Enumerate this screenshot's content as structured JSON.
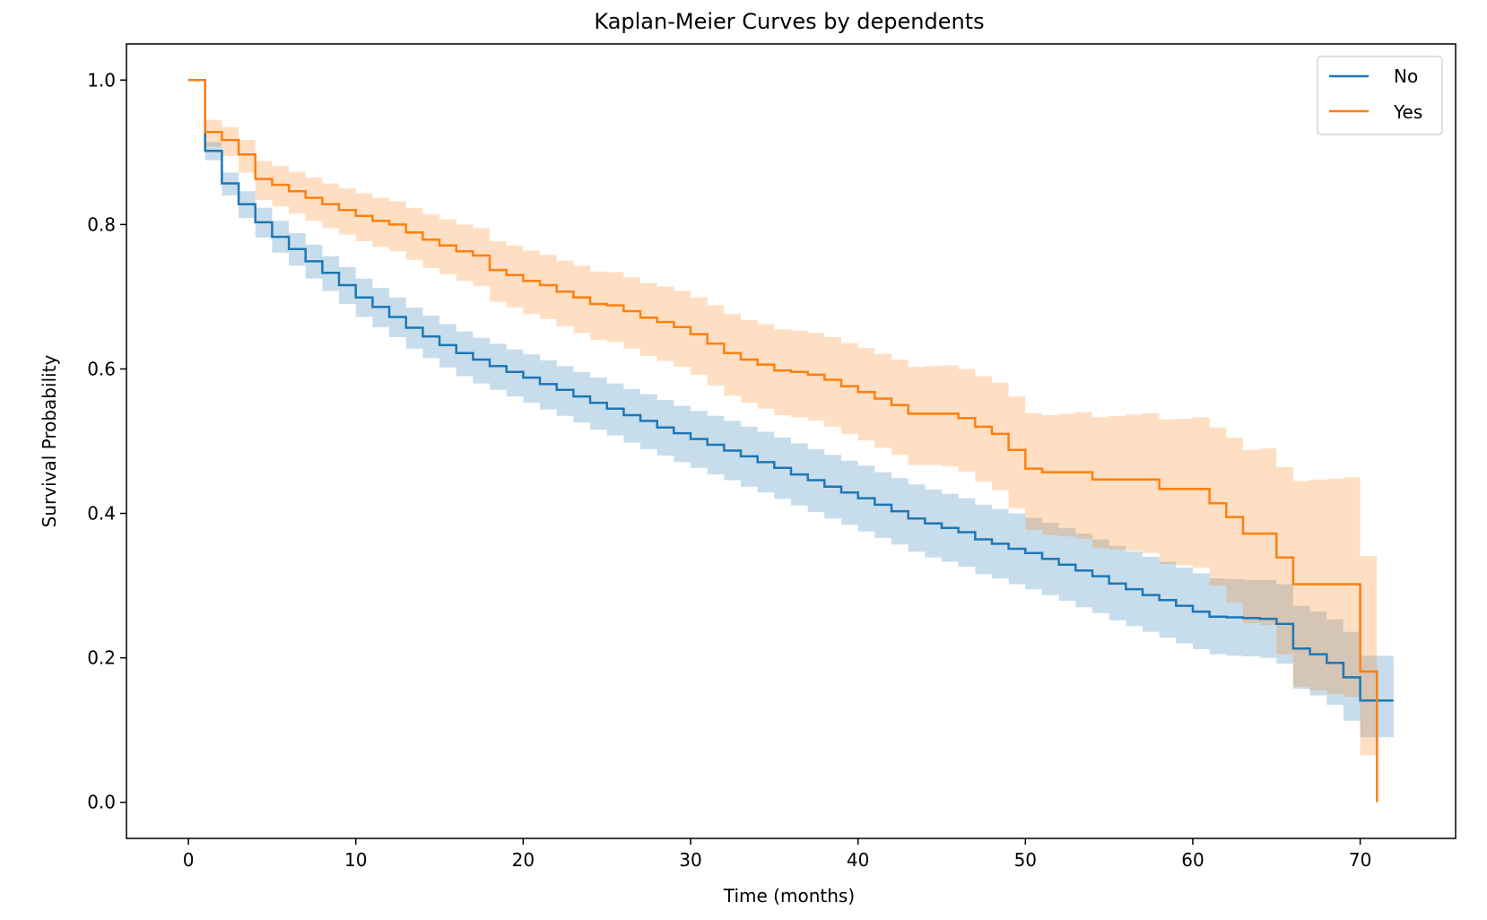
{
  "chart_data": {
    "type": "line",
    "title": "Kaplan-Meier Curves by dependents",
    "xlabel": "Time (months)",
    "ylabel": "Survival Probability",
    "xlim": [
      -3.7,
      75.7
    ],
    "ylim": [
      -0.05,
      1.05
    ],
    "xticks": [
      0,
      10,
      20,
      30,
      40,
      50,
      60,
      70
    ],
    "yticks": [
      0.0,
      0.2,
      0.4,
      0.6,
      0.8,
      1.0
    ],
    "xtick_labels": [
      "0",
      "10",
      "20",
      "30",
      "40",
      "50",
      "60",
      "70"
    ],
    "ytick_labels": [
      "0.0",
      "0.2",
      "0.4",
      "0.6",
      "0.8",
      "1.0"
    ],
    "grid": false,
    "legend_position": "top-right",
    "step": "post",
    "series": [
      {
        "name": "No",
        "color": "#1f77b4",
        "x": [
          0,
          1,
          2,
          3,
          4,
          5,
          6,
          7,
          8,
          9,
          10,
          11,
          12,
          13,
          14,
          15,
          16,
          17,
          18,
          19,
          20,
          21,
          22,
          23,
          24,
          25,
          26,
          27,
          28,
          29,
          30,
          31,
          32,
          33,
          34,
          35,
          36,
          37,
          38,
          39,
          40,
          41,
          42,
          43,
          44,
          45,
          46,
          47,
          48,
          49,
          50,
          51,
          52,
          53,
          54,
          55,
          56,
          57,
          58,
          59,
          60,
          61,
          62,
          63,
          64,
          65,
          66,
          67,
          68,
          69,
          70,
          71,
          72
        ],
        "y": [
          1.0,
          0.902,
          0.857,
          0.828,
          0.803,
          0.783,
          0.766,
          0.749,
          0.733,
          0.716,
          0.699,
          0.686,
          0.672,
          0.657,
          0.645,
          0.633,
          0.622,
          0.613,
          0.604,
          0.596,
          0.588,
          0.579,
          0.571,
          0.562,
          0.553,
          0.545,
          0.536,
          0.528,
          0.519,
          0.511,
          0.503,
          0.495,
          0.487,
          0.479,
          0.471,
          0.463,
          0.454,
          0.446,
          0.437,
          0.429,
          0.421,
          0.412,
          0.403,
          0.393,
          0.386,
          0.38,
          0.374,
          0.364,
          0.358,
          0.351,
          0.345,
          0.337,
          0.329,
          0.321,
          0.313,
          0.303,
          0.295,
          0.287,
          0.28,
          0.272,
          0.264,
          0.257,
          0.256,
          0.255,
          0.254,
          0.247,
          0.213,
          0.205,
          0.193,
          0.173,
          0.141,
          0.141,
          0.141
        ],
        "ci_lower": [
          1.0,
          0.889,
          0.84,
          0.809,
          0.782,
          0.761,
          0.743,
          0.725,
          0.708,
          0.69,
          0.672,
          0.658,
          0.644,
          0.628,
          0.615,
          0.602,
          0.59,
          0.58,
          0.571,
          0.562,
          0.553,
          0.544,
          0.535,
          0.526,
          0.516,
          0.508,
          0.498,
          0.489,
          0.48,
          0.471,
          0.463,
          0.454,
          0.446,
          0.437,
          0.429,
          0.42,
          0.411,
          0.402,
          0.393,
          0.384,
          0.375,
          0.366,
          0.357,
          0.347,
          0.339,
          0.333,
          0.326,
          0.316,
          0.31,
          0.302,
          0.295,
          0.287,
          0.279,
          0.27,
          0.262,
          0.252,
          0.244,
          0.236,
          0.228,
          0.22,
          0.212,
          0.205,
          0.203,
          0.202,
          0.2,
          0.192,
          0.157,
          0.148,
          0.135,
          0.113,
          0.09,
          0.09,
          0.09
        ],
        "ci_upper": [
          1.0,
          0.914,
          0.872,
          0.846,
          0.823,
          0.805,
          0.788,
          0.772,
          0.756,
          0.741,
          0.725,
          0.712,
          0.699,
          0.685,
          0.674,
          0.662,
          0.652,
          0.643,
          0.635,
          0.627,
          0.62,
          0.612,
          0.604,
          0.596,
          0.588,
          0.58,
          0.572,
          0.565,
          0.557,
          0.549,
          0.542,
          0.535,
          0.528,
          0.52,
          0.513,
          0.505,
          0.497,
          0.489,
          0.481,
          0.473,
          0.466,
          0.457,
          0.449,
          0.44,
          0.433,
          0.427,
          0.421,
          0.412,
          0.406,
          0.4,
          0.394,
          0.387,
          0.38,
          0.372,
          0.364,
          0.355,
          0.347,
          0.34,
          0.333,
          0.325,
          0.317,
          0.31,
          0.309,
          0.308,
          0.308,
          0.302,
          0.272,
          0.264,
          0.253,
          0.236,
          0.203,
          0.203,
          0.203
        ]
      },
      {
        "name": "Yes",
        "color": "#ff7f0e",
        "x": [
          0,
          1,
          2,
          3,
          4,
          5,
          6,
          7,
          8,
          9,
          10,
          11,
          12,
          13,
          14,
          15,
          16,
          17,
          18,
          19,
          20,
          21,
          22,
          23,
          24,
          25,
          26,
          27,
          28,
          29,
          30,
          31,
          32,
          33,
          34,
          35,
          36,
          37,
          38,
          39,
          40,
          41,
          42,
          43,
          44,
          45,
          46,
          47,
          48,
          49,
          50,
          51,
          52,
          53,
          54,
          55,
          56,
          57,
          58,
          59,
          60,
          61,
          62,
          63,
          64,
          65,
          66,
          67,
          68,
          69,
          70,
          71
        ],
        "y": [
          1.0,
          0.928,
          0.917,
          0.897,
          0.863,
          0.855,
          0.846,
          0.837,
          0.828,
          0.82,
          0.812,
          0.805,
          0.8,
          0.789,
          0.779,
          0.771,
          0.763,
          0.757,
          0.737,
          0.73,
          0.722,
          0.716,
          0.707,
          0.699,
          0.69,
          0.688,
          0.68,
          0.671,
          0.665,
          0.658,
          0.648,
          0.635,
          0.622,
          0.613,
          0.606,
          0.598,
          0.596,
          0.592,
          0.585,
          0.576,
          0.568,
          0.559,
          0.55,
          0.538,
          0.538,
          0.538,
          0.532,
          0.52,
          0.51,
          0.488,
          0.462,
          0.457,
          0.457,
          0.457,
          0.447,
          0.447,
          0.447,
          0.447,
          0.434,
          0.434,
          0.434,
          0.414,
          0.395,
          0.372,
          0.372,
          0.339,
          0.302,
          0.302,
          0.302,
          0.302,
          0.181,
          0.0
        ],
        "ci_lower": [
          1.0,
          0.908,
          0.895,
          0.872,
          0.834,
          0.825,
          0.815,
          0.805,
          0.795,
          0.786,
          0.777,
          0.769,
          0.763,
          0.751,
          0.74,
          0.731,
          0.722,
          0.715,
          0.693,
          0.685,
          0.676,
          0.669,
          0.659,
          0.65,
          0.64,
          0.637,
          0.628,
          0.618,
          0.611,
          0.603,
          0.592,
          0.577,
          0.563,
          0.553,
          0.545,
          0.536,
          0.533,
          0.528,
          0.52,
          0.51,
          0.501,
          0.491,
          0.481,
          0.467,
          0.467,
          0.465,
          0.458,
          0.444,
          0.432,
          0.407,
          0.377,
          0.37,
          0.368,
          0.365,
          0.352,
          0.35,
          0.348,
          0.345,
          0.33,
          0.328,
          0.325,
          0.3,
          0.276,
          0.248,
          0.245,
          0.205,
          0.16,
          0.155,
          0.15,
          0.146,
          0.065,
          0.0
        ],
        "ci_upper": [
          1.0,
          0.945,
          0.935,
          0.917,
          0.888,
          0.881,
          0.873,
          0.865,
          0.857,
          0.85,
          0.843,
          0.837,
          0.832,
          0.823,
          0.814,
          0.807,
          0.8,
          0.795,
          0.777,
          0.771,
          0.764,
          0.758,
          0.75,
          0.743,
          0.735,
          0.734,
          0.727,
          0.719,
          0.714,
          0.708,
          0.699,
          0.688,
          0.676,
          0.668,
          0.662,
          0.655,
          0.653,
          0.65,
          0.644,
          0.636,
          0.629,
          0.621,
          0.613,
          0.603,
          0.604,
          0.605,
          0.6,
          0.59,
          0.581,
          0.562,
          0.539,
          0.536,
          0.538,
          0.54,
          0.533,
          0.535,
          0.537,
          0.539,
          0.53,
          0.531,
          0.533,
          0.519,
          0.505,
          0.488,
          0.49,
          0.464,
          0.445,
          0.447,
          0.448,
          0.45,
          0.341,
          0.341
        ]
      }
    ]
  }
}
